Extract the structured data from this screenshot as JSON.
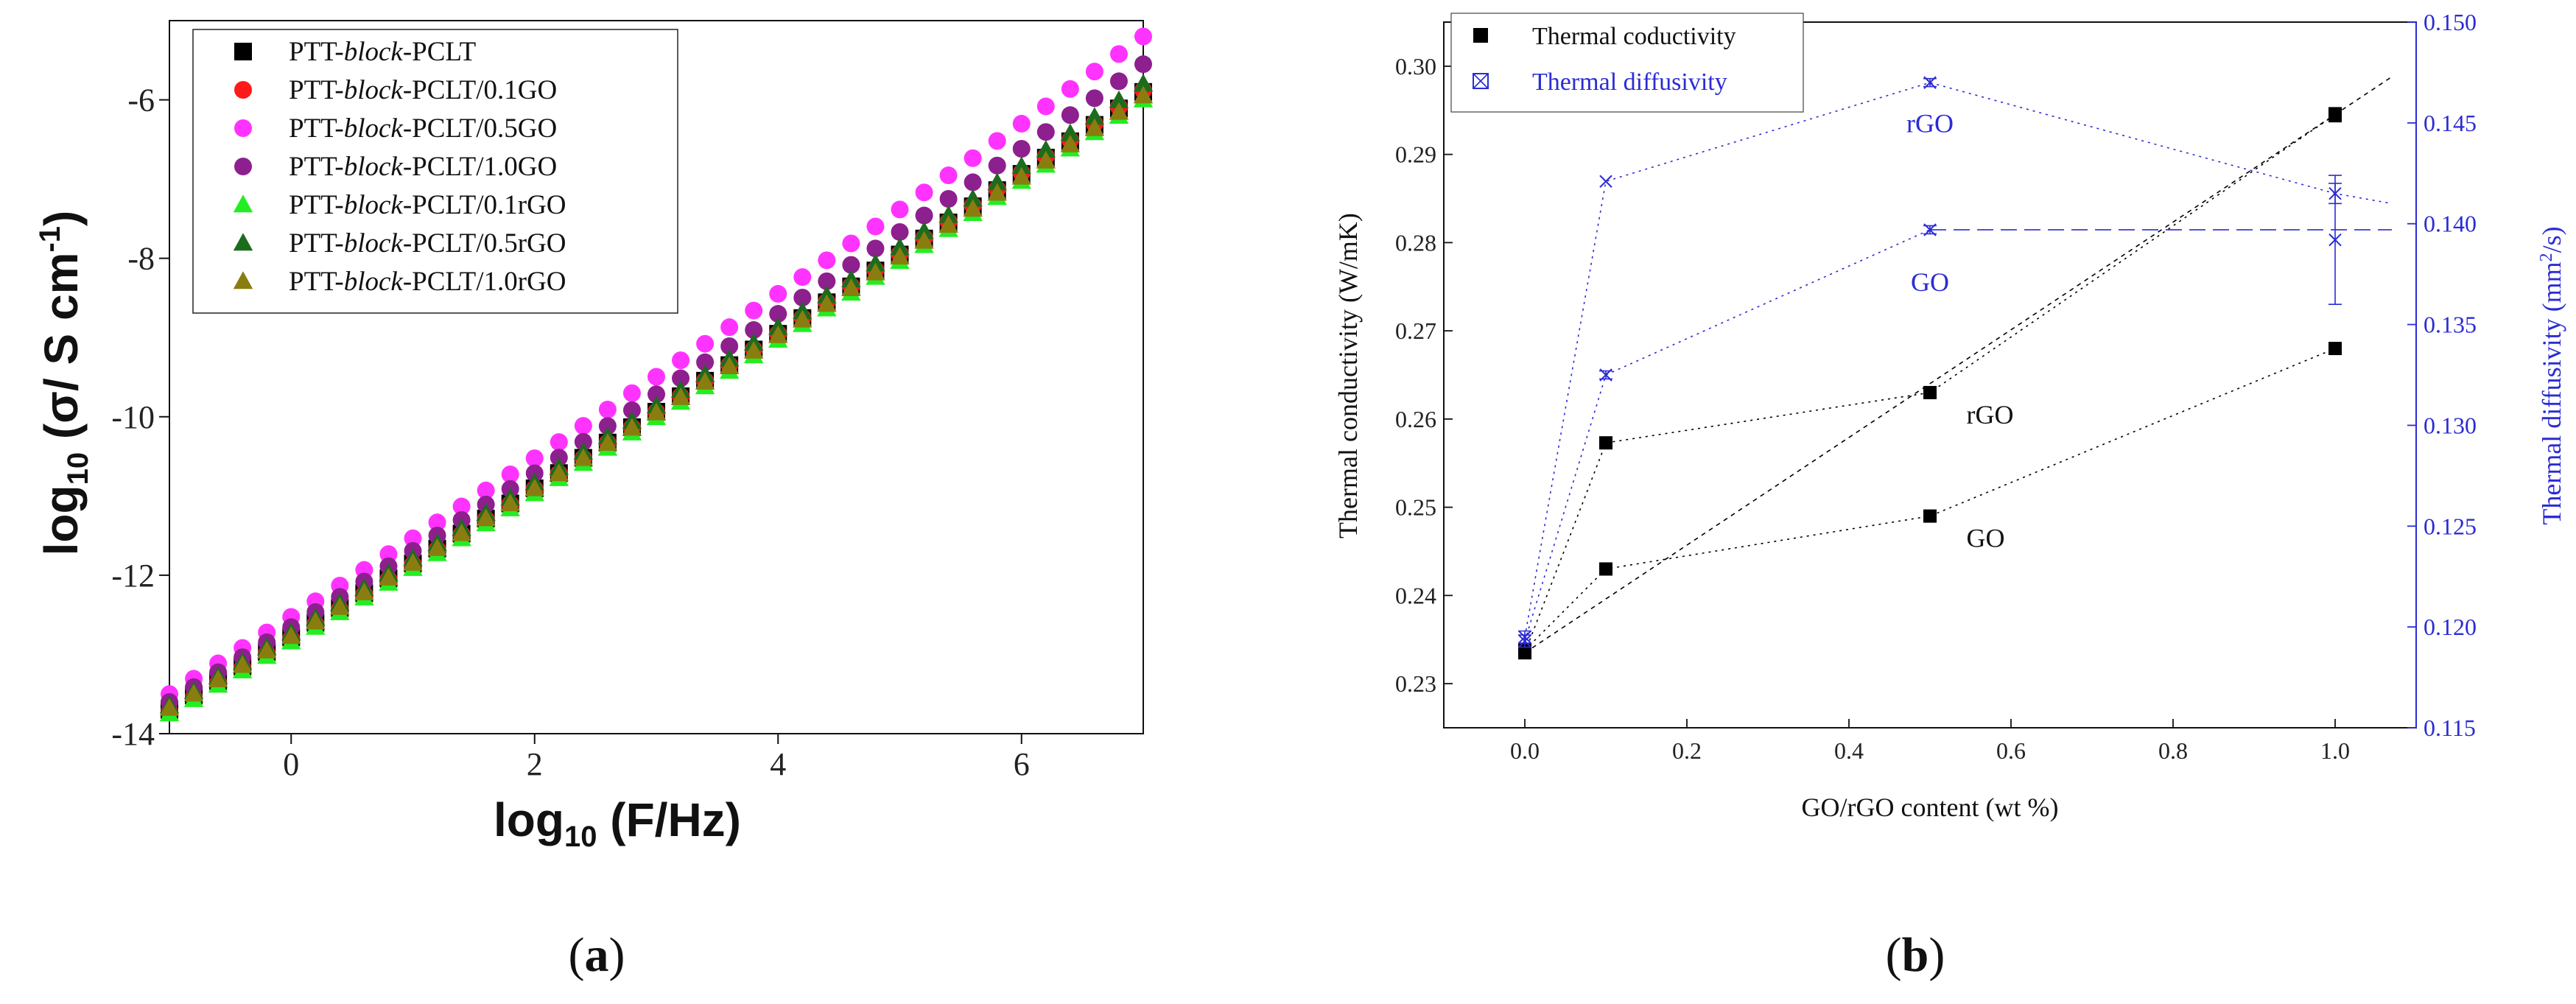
{
  "chart_data": [
    {
      "type": "scatter",
      "panel_label": "(a)",
      "panel_label_parts": [
        "(",
        "a",
        ")"
      ],
      "title": "",
      "xlabel": {
        "base": "log",
        "sub": "10",
        "rest": " (F/Hz)"
      },
      "ylabel": {
        "base": "log",
        "sub": "10",
        "rest": " (σ/ S cm",
        "sup": "-1",
        "end": ")"
      },
      "xlim": [
        -1,
        7
      ],
      "ylim": [
        -14,
        -5
      ],
      "x_ticks": [
        0,
        2,
        4,
        6
      ],
      "x_tick_labels": [
        "0",
        "2",
        "4",
        "6"
      ],
      "y_ticks": [
        -14,
        -12,
        -10,
        -8,
        -6
      ],
      "y_tick_labels": [
        "-14",
        "-12",
        "-10",
        "-8",
        "-6"
      ],
      "x_start": -1,
      "x_step": 0.2,
      "x_end": 7,
      "series": [
        {
          "name": "PTT-block-PCLT",
          "prefix": "PTT-",
          "italic": "block",
          "suffix": "-PCLT",
          "marker": "square",
          "color": "#000000",
          "y_start": -13.7,
          "y_end": -5.9
        },
        {
          "name": "PTT-block-PCLT/0.1GO",
          "prefix": "PTT-",
          "italic": "block",
          "suffix": "-PCLT/0.1GO",
          "marker": "circle",
          "color": "#ff1a1a",
          "y_start": -13.72,
          "y_end": -5.88
        },
        {
          "name": "PTT-block-PCLT/0.5GO",
          "prefix": "PTT-",
          "italic": "block",
          "suffix": "-PCLT/0.5GO",
          "marker": "circle",
          "color": "#ff33ff",
          "y_start": -13.5,
          "y_end": -5.2
        },
        {
          "name": "PTT-block-PCLT/1.0GO",
          "prefix": "PTT-",
          "italic": "block",
          "suffix": "-PCLT/1.0GO",
          "marker": "circle",
          "color": "#8e1f8e",
          "y_start": -13.6,
          "y_end": -5.55
        },
        {
          "name": "PTT-block-PCLT/0.1rGO",
          "prefix": "PTT-",
          "italic": "block",
          "suffix": "-PCLT/0.1rGO",
          "marker": "triangle",
          "color": "#22ee22",
          "y_start": -13.75,
          "y_end": -6.0
        },
        {
          "name": "PTT-block-PCLT/0.5rGO",
          "prefix": "PTT-",
          "italic": "block",
          "suffix": "-PCLT/0.5rGO",
          "marker": "triangle",
          "color": "#1d6b1d",
          "y_start": -13.65,
          "y_end": -5.8
        },
        {
          "name": "PTT-block-PCLT/1.0rGO",
          "prefix": "PTT-",
          "italic": "block",
          "suffix": "-PCLT/1.0rGO",
          "marker": "triangle",
          "color": "#8a7d10",
          "y_start": -13.68,
          "y_end": -5.95
        }
      ],
      "legend_position": "top-left"
    },
    {
      "type": "line",
      "panel_label": "(b)",
      "panel_label_parts": [
        "(",
        "b",
        ")"
      ],
      "title": "",
      "xlabel": "GO/rGO content (wt %)",
      "ylabel": "Thermal conductivity (W/mK)",
      "ylabel_right": {
        "base": "Thermal diffusivity (mm",
        "sup": "2",
        "rest": "/s)"
      },
      "xlim": [
        -0.1,
        1.1
      ],
      "ylim": [
        0.225,
        0.305
      ],
      "ylim_right": [
        0.115,
        0.15
      ],
      "x_ticks": [
        0.0,
        0.2,
        0.4,
        0.6,
        0.8,
        1.0
      ],
      "x_tick_labels": [
        "0.0",
        "0.2",
        "0.4",
        "0.6",
        "0.8",
        "1.0"
      ],
      "y_ticks": [
        0.23,
        0.24,
        0.25,
        0.26,
        0.27,
        0.28,
        0.29,
        0.3
      ],
      "y_tick_labels": [
        "0.23",
        "0.24",
        "0.25",
        "0.26",
        "0.27",
        "0.28",
        "0.29",
        "0.30"
      ],
      "y_ticks_right": [
        0.115,
        0.12,
        0.125,
        0.13,
        0.135,
        0.14,
        0.145,
        0.15
      ],
      "y_tick_labels_right": [
        "0.115",
        "0.120",
        "0.125",
        "0.130",
        "0.135",
        "0.140",
        "0.145",
        "0.150"
      ],
      "legend": [
        {
          "name": "Thermal coductivity",
          "marker": "square",
          "color": "#000000"
        },
        {
          "name": "Thermal diffusivity",
          "marker": "boxcross",
          "color": "#2b2bd6"
        }
      ],
      "series": [
        {
          "name": "rGO conductivity",
          "axis": "left",
          "color": "#000000",
          "marker": "square",
          "x": [
            0.0,
            0.1,
            0.5,
            1.0
          ],
          "y": [
            0.2335,
            0.2573,
            0.263,
            0.2945
          ],
          "errors": [
            0,
            0,
            0,
            0.0008
          ],
          "fit_x": [
            0.0,
            1.07
          ],
          "fit_y": [
            0.2335,
            0.2988
          ],
          "fit_dash": "6,6"
        },
        {
          "name": "GO conductivity",
          "axis": "left",
          "color": "#000000",
          "marker": "square",
          "x": [
            0.0,
            0.1,
            0.5,
            1.0
          ],
          "y": [
            0.2338,
            0.243,
            0.249,
            0.268
          ],
          "errors": [
            0,
            0,
            0,
            0
          ],
          "connect_dash": "3,6"
        },
        {
          "name": "rGO diffusivity",
          "axis": "right",
          "color": "#2b2bd6",
          "marker": "cross",
          "x": [
            0.0,
            0.1,
            0.5,
            1.0
          ],
          "y": [
            0.1195,
            0.1421,
            0.147,
            0.1415
          ],
          "errors": [
            0.0003,
            0,
            0.0002,
            0.0005
          ],
          "connect_dash": "3,6",
          "extend_to": [
            1.07,
            0.141
          ]
        },
        {
          "name": "GO diffusivity",
          "axis": "right",
          "color": "#2b2bd6",
          "marker": "cross",
          "x": [
            0.0,
            0.1,
            0.5,
            1.0
          ],
          "y": [
            0.1193,
            0.1325,
            0.1397,
            0.1392
          ],
          "errors": [
            0.0003,
            0.0002,
            0.0002,
            0.0032
          ],
          "connect_dash": "3,6",
          "flat_dash": "22,10"
        }
      ],
      "annotations": [
        {
          "text": "rGO",
          "color": "#2b2bd6",
          "x": 0.5,
          "y": 0.2925
        },
        {
          "text": "GO",
          "color": "#2b2bd6",
          "x": 0.5,
          "y": 0.2745
        },
        {
          "text": "rGO",
          "color": "#000000",
          "x": 0.545,
          "y": 0.2595
        },
        {
          "text": "GO",
          "color": "#000000",
          "x": 0.545,
          "y": 0.2455
        }
      ]
    }
  ]
}
